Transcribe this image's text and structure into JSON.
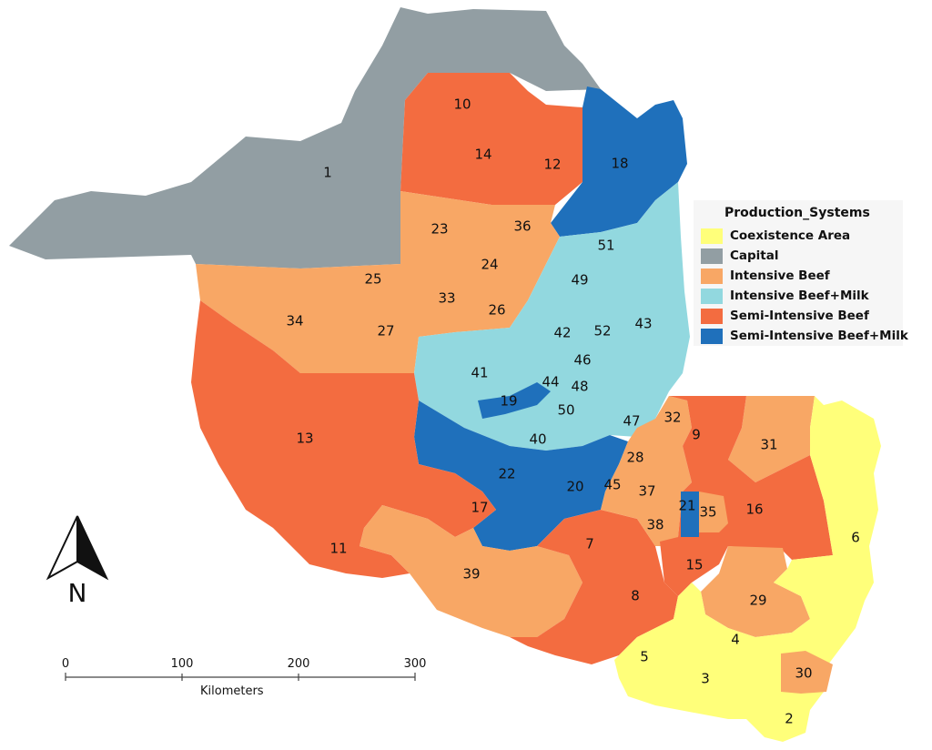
{
  "legend": {
    "title": "Production_Systems",
    "items": [
      {
        "label": "Coexistence Area",
        "color": "#ffff7a"
      },
      {
        "label": "Capital",
        "color": "#929ea3"
      },
      {
        "label": "Intensive Beef",
        "color": "#f8a765"
      },
      {
        "label": "Intensive Beef+Milk",
        "color": "#92d8df"
      },
      {
        "label": "Semi-Intensive Beef",
        "color": "#f36c40"
      },
      {
        "label": "Semi-Intensive Beef+Milk",
        "color": "#1f70bb"
      }
    ]
  },
  "north_arrow": {
    "letter": "N"
  },
  "scale_bar": {
    "ticks": [
      "0",
      "100",
      "200",
      "300"
    ],
    "unit": "Kilometers"
  },
  "regions": {
    "capital": "Capital",
    "intensive_beef": "Intensive Beef",
    "intensive_beef_milk": "Intensive Beef+Milk",
    "semi_intensive_beef": "Semi-Intensive Beef",
    "semi_intensive_beef_milk": "Semi-Intensive Beef+Milk",
    "coexistence": "Coexistence Area"
  },
  "municipalities": [
    "1",
    "2",
    "3",
    "4",
    "5",
    "6",
    "7",
    "8",
    "9",
    "10",
    "11",
    "12",
    "13",
    "14",
    "15",
    "16",
    "17",
    "18",
    "19",
    "20",
    "21",
    "22",
    "23",
    "24",
    "25",
    "26",
    "27",
    "28",
    "29",
    "30",
    "31",
    "32",
    "33",
    "34",
    "35",
    "36",
    "37",
    "38",
    "39",
    "40",
    "41",
    "42",
    "43",
    "44",
    "45",
    "46",
    "47",
    "48",
    "49",
    "50",
    "51",
    "52"
  ]
}
